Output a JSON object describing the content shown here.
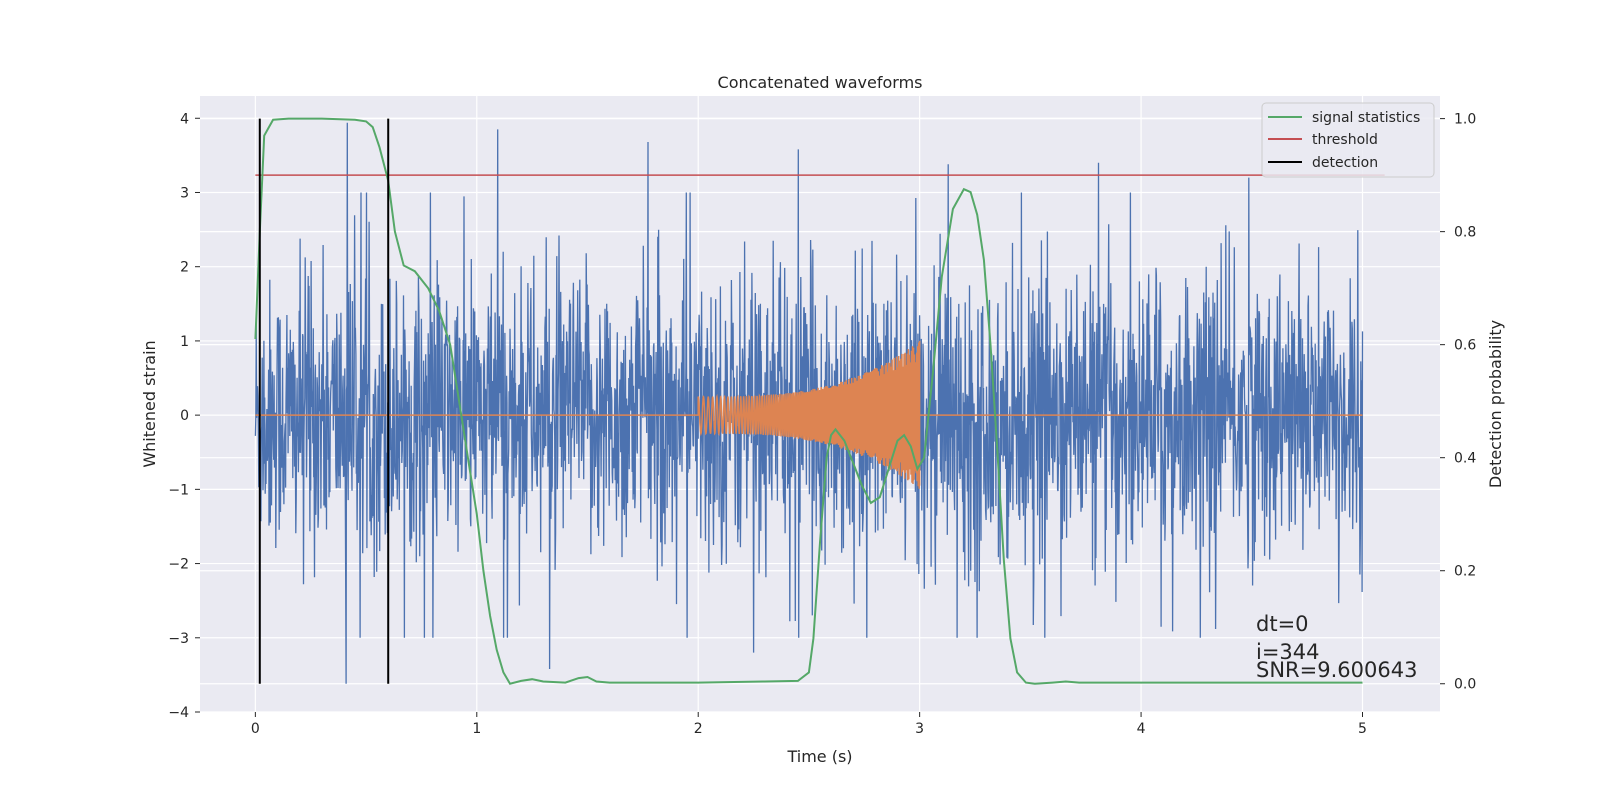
{
  "chart_data": {
    "type": "line",
    "title": "Concatenated waveforms",
    "xlabel": "Time (s)",
    "ylabel_left": "Whitened strain",
    "ylabel_right": "Detection probability",
    "xlim": [
      -0.25,
      5.35
    ],
    "ylim_left": [
      -4.0,
      4.3
    ],
    "ylim_right": [
      -0.05,
      1.04
    ],
    "x_ticks": [
      0,
      1,
      2,
      3,
      4,
      5
    ],
    "x_tick_labels": [
      "0",
      "1",
      "2",
      "3",
      "4",
      "5"
    ],
    "y_left_ticks": [
      4,
      3,
      2,
      1,
      0,
      -1,
      -2,
      -3,
      -4
    ],
    "y_left_tick_labels": [
      "4",
      "3",
      "2",
      "1",
      "0",
      "−1",
      "−2",
      "−3",
      "−4"
    ],
    "y_right_ticks": [
      1.0,
      0.8,
      0.6,
      0.4,
      0.2,
      0.0
    ],
    "y_right_tick_labels": [
      "1.0",
      "0.8",
      "0.6",
      "0.4",
      "0.2",
      "0.0"
    ],
    "grid": true,
    "legend_position": "top-right",
    "legend": [
      "signal statistics",
      "threshold",
      "detection"
    ],
    "colors": {
      "strain": "#4c72b0",
      "template": "#dd8452",
      "signal_statistics": "#55a868",
      "threshold": "#c44e52",
      "detection": "#000000",
      "background": "#eaeaf2",
      "grid": "#ffffff"
    },
    "strain": {
      "x_range": [
        0,
        5
      ],
      "noise_std": 0.9,
      "extreme_peaks": [
        3.94,
        3.85,
        3.68,
        3.58,
        3.38,
        3.4,
        3.2
      ],
      "extreme_troughs": [
        -3.62,
        -3.42,
        -3.2,
        -3.0,
        -2.85
      ]
    },
    "template": {
      "x_range": [
        2.0,
        3.0
      ],
      "start_amplitude": 0.25,
      "end_amplitude_top": 1.0,
      "end_amplitude_bottom": -0.95
    },
    "signal_statistics": {
      "x": [
        0.0,
        0.02,
        0.04,
        0.08,
        0.15,
        0.3,
        0.45,
        0.5,
        0.53,
        0.56,
        0.58,
        0.6,
        0.63,
        0.67,
        0.72,
        0.78,
        0.83,
        0.88,
        0.92,
        0.96,
        1.0,
        1.03,
        1.06,
        1.09,
        1.12,
        1.15,
        1.2,
        1.25,
        1.3,
        1.4,
        1.46,
        1.5,
        1.54,
        1.6,
        2.0,
        2.3,
        2.45,
        2.5,
        2.52,
        2.55,
        2.58,
        2.6,
        2.62,
        2.66,
        2.7,
        2.74,
        2.78,
        2.82,
        2.86,
        2.9,
        2.93,
        2.96,
        2.99,
        3.02,
        3.06,
        3.1,
        3.15,
        3.2,
        3.23,
        3.26,
        3.29,
        3.32,
        3.35,
        3.38,
        3.41,
        3.44,
        3.48,
        3.52,
        3.6,
        3.66,
        3.72,
        4.0,
        4.5,
        5.0
      ],
      "y": [
        0.61,
        0.8,
        0.97,
        0.998,
        1.0,
        1.0,
        0.998,
        0.995,
        0.985,
        0.95,
        0.92,
        0.89,
        0.8,
        0.74,
        0.73,
        0.7,
        0.66,
        0.6,
        0.5,
        0.4,
        0.3,
        0.2,
        0.12,
        0.06,
        0.02,
        0.0,
        0.005,
        0.008,
        0.004,
        0.002,
        0.01,
        0.012,
        0.004,
        0.002,
        0.002,
        0.004,
        0.005,
        0.02,
        0.08,
        0.25,
        0.4,
        0.44,
        0.45,
        0.43,
        0.39,
        0.35,
        0.32,
        0.33,
        0.38,
        0.43,
        0.44,
        0.42,
        0.38,
        0.4,
        0.55,
        0.72,
        0.84,
        0.875,
        0.87,
        0.83,
        0.75,
        0.6,
        0.42,
        0.22,
        0.08,
        0.02,
        0.002,
        0.0,
        0.002,
        0.004,
        0.002,
        0.002,
        0.002,
        0.002
      ]
    },
    "threshold": {
      "x": [
        0.0,
        5.1
      ],
      "y": 0.9
    },
    "detections": [
      0.02,
      0.6
    ],
    "annotations": [
      "dt=0",
      "i=344",
      "SNR=9.600643"
    ]
  }
}
